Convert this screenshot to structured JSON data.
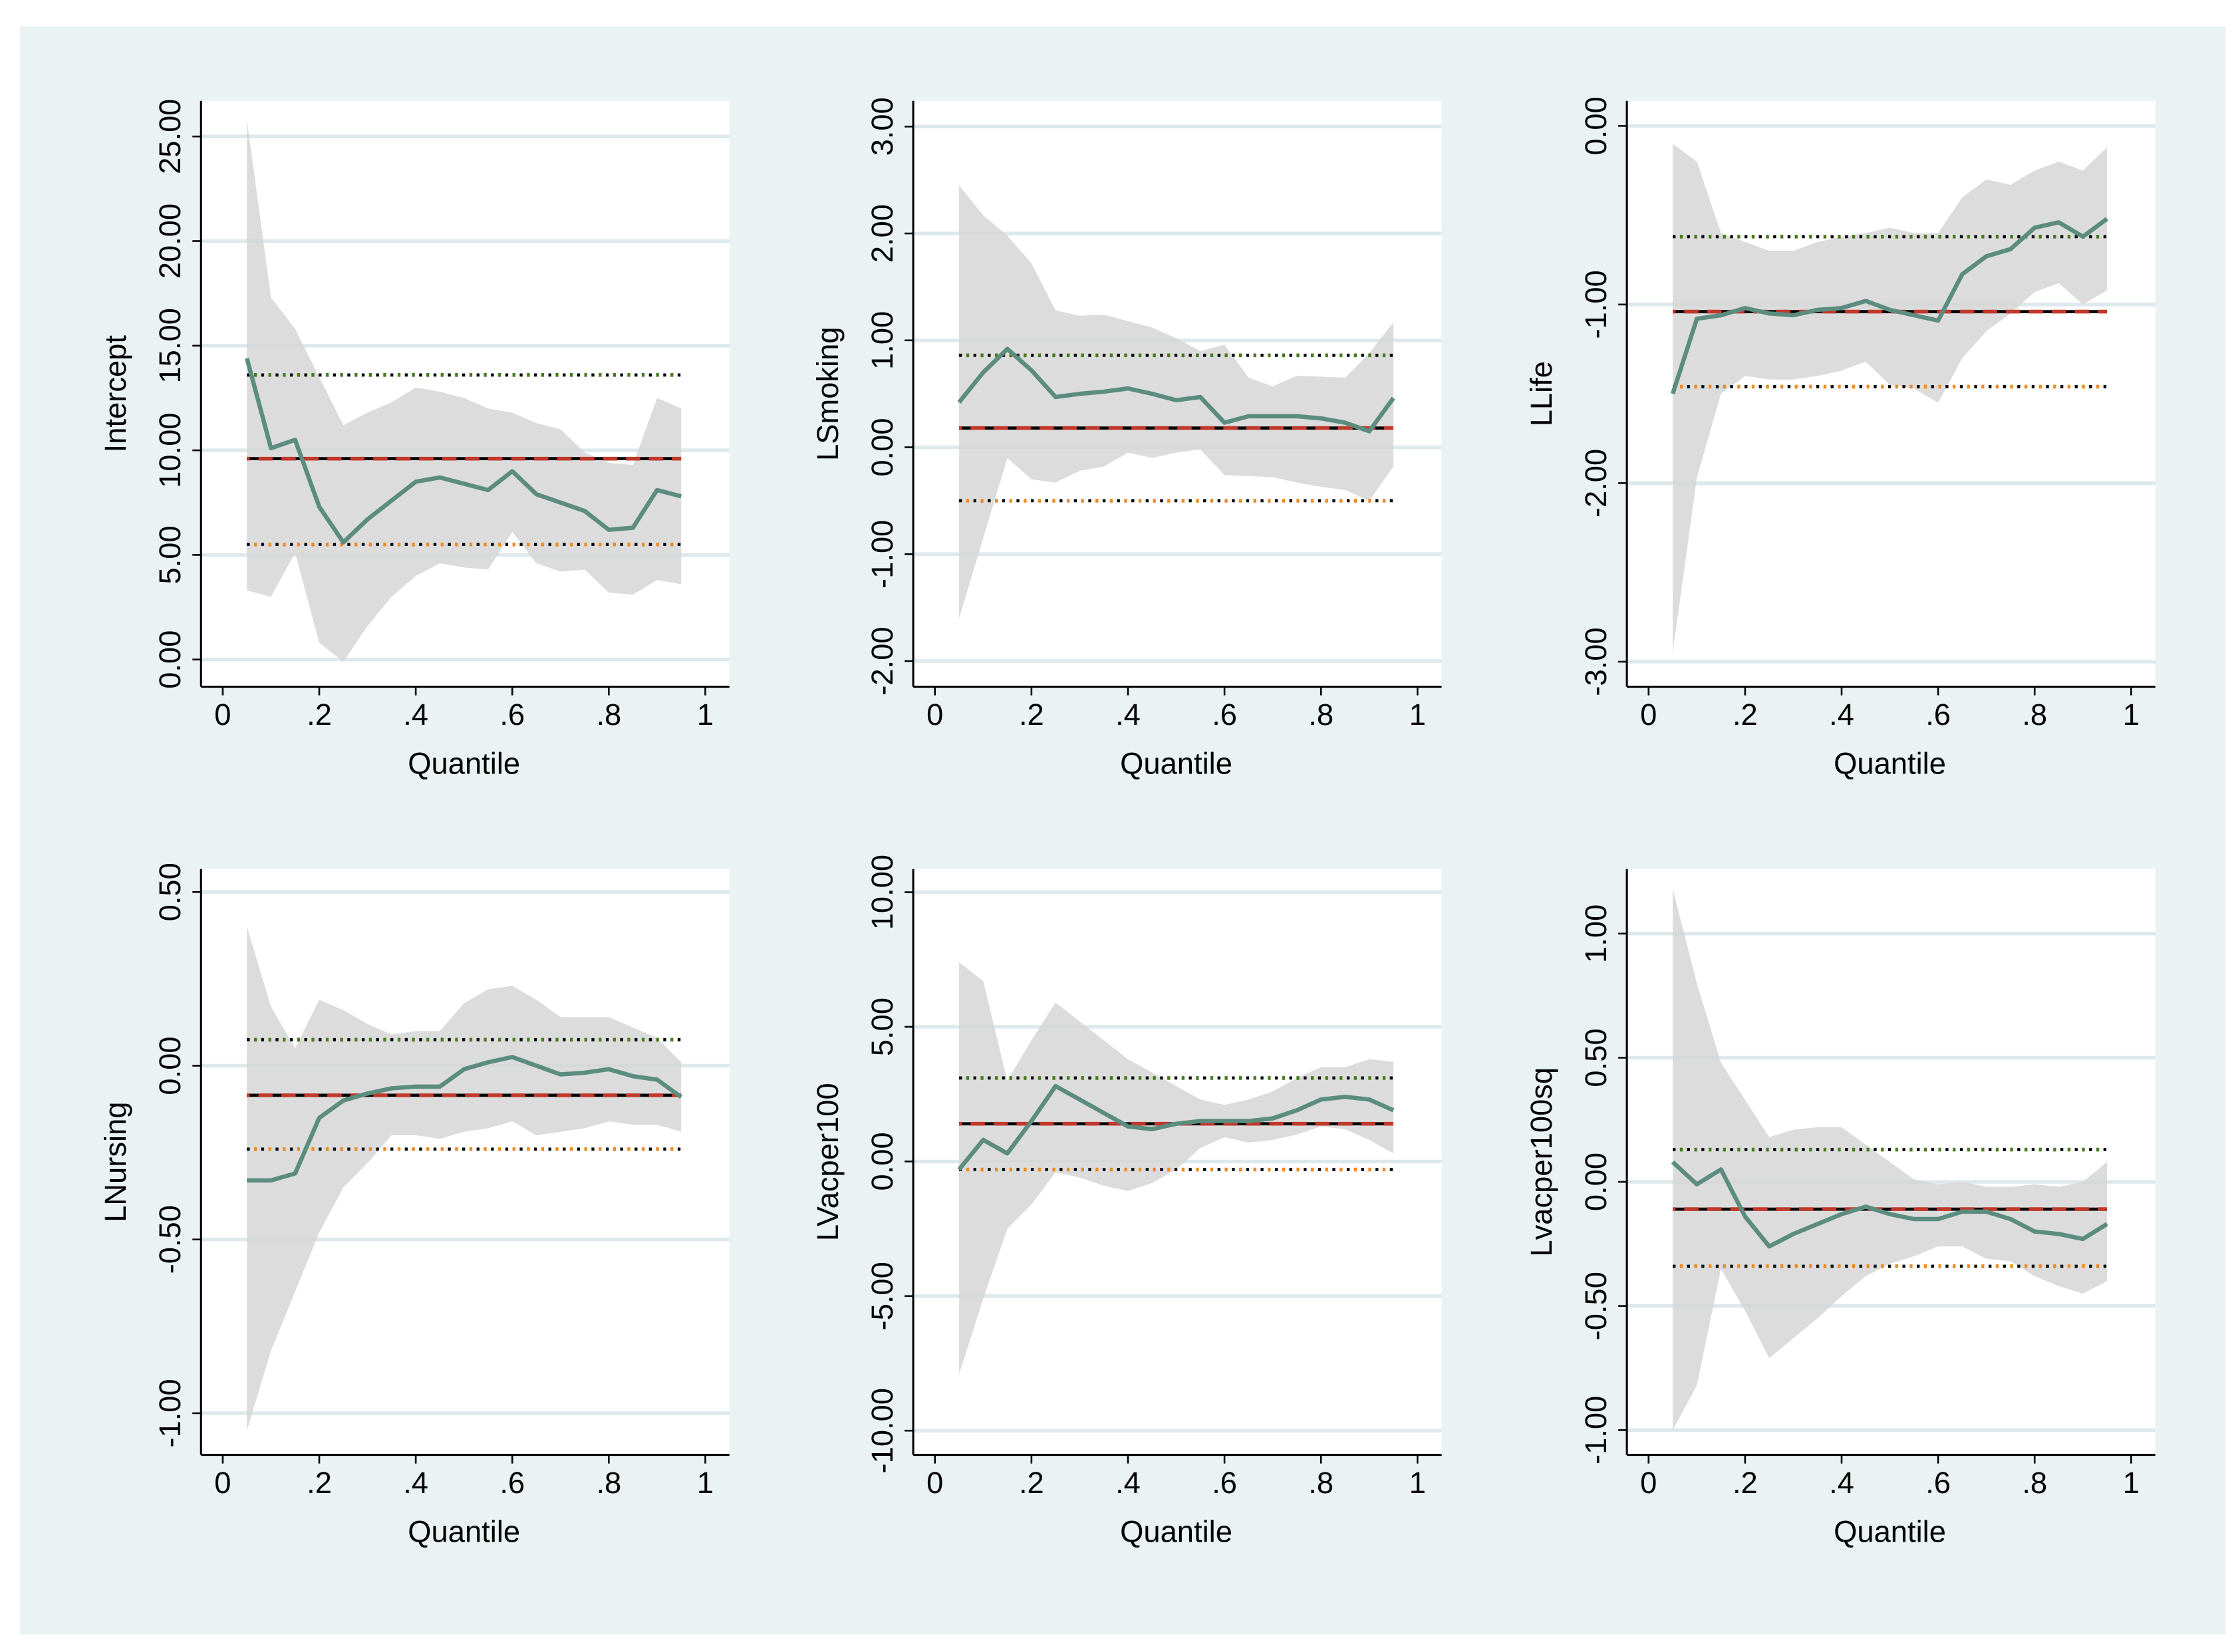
{
  "chart_data": [
    {
      "type": "line",
      "ylabel": "Intercept",
      "xlabel": "Quantile",
      "x": [
        0.05,
        0.1,
        0.15,
        0.2,
        0.25,
        0.3,
        0.35,
        0.4,
        0.45,
        0.5,
        0.55,
        0.6,
        0.65,
        0.7,
        0.75,
        0.8,
        0.85,
        0.9,
        0.95
      ],
      "xlim": [
        -0.045,
        1.05
      ],
      "xticks": [
        0,
        {
          "value": 0.2,
          "label": ".2"
        },
        {
          "value": 0.4,
          "label": ".4"
        },
        {
          "value": 0.6,
          "label": ".6"
        },
        {
          "value": 0.8,
          "label": ".8"
        },
        1
      ],
      "ylim": [
        -1.3,
        26.7
      ],
      "yticks": [
        {
          "value": 0,
          "label": "0.00"
        },
        {
          "value": 5,
          "label": "5.00"
        },
        {
          "value": 10,
          "label": "10.00"
        },
        {
          "value": 15,
          "label": "15.00"
        },
        {
          "value": 20,
          "label": "20.00"
        },
        {
          "value": 25,
          "label": "25.00"
        }
      ],
      "grid": true,
      "band": {
        "color": "#d6d6d6",
        "lower": [
          3.3,
          3.0,
          5.1,
          0.8,
          -0.1,
          1.6,
          3.0,
          4.0,
          4.6,
          4.4,
          4.3,
          6.1,
          4.6,
          4.2,
          4.3,
          3.2,
          3.1,
          3.8,
          3.6
        ],
        "upper": [
          25.8,
          17.3,
          15.8,
          13.5,
          11.2,
          11.8,
          12.3,
          13.0,
          12.8,
          12.5,
          12.0,
          11.8,
          11.3,
          11.0,
          9.9,
          9.4,
          9.3,
          12.5,
          12.0
        ]
      },
      "series": [
        {
          "color": "#5b8c7e",
          "values": [
            14.4,
            10.1,
            10.5,
            7.3,
            5.6,
            6.7,
            7.6,
            8.5,
            8.7,
            8.4,
            8.1,
            9.0,
            7.9,
            7.5,
            7.1,
            6.2,
            6.3,
            8.1,
            7.8
          ]
        }
      ],
      "hlines": [
        {
          "value": 13.6,
          "color": "#4a7a1e",
          "style": "dotted"
        },
        {
          "value": 9.6,
          "color": "#c0392b",
          "style": "dashed"
        },
        {
          "value": 5.5,
          "color": "#f08a1c",
          "style": "dotted"
        }
      ]
    },
    {
      "type": "line",
      "ylabel": "LSmoking",
      "xlabel": "Quantile",
      "x": [
        0.05,
        0.1,
        0.15,
        0.2,
        0.25,
        0.3,
        0.35,
        0.4,
        0.45,
        0.5,
        0.55,
        0.6,
        0.65,
        0.7,
        0.75,
        0.8,
        0.85,
        0.9,
        0.95
      ],
      "xlim": [
        -0.045,
        1.05
      ],
      "xticks": [
        0,
        {
          "value": 0.2,
          "label": ".2"
        },
        {
          "value": 0.4,
          "label": ".4"
        },
        {
          "value": 0.6,
          "label": ".6"
        },
        {
          "value": 0.8,
          "label": ".8"
        },
        1
      ],
      "ylim": [
        -2.24,
        3.24
      ],
      "yticks": [
        {
          "value": -2,
          "label": "-2.00"
        },
        {
          "value": -1,
          "label": "-1.00"
        },
        {
          "value": 0,
          "label": "0.00"
        },
        {
          "value": 1,
          "label": "1.00"
        },
        {
          "value": 2,
          "label": "2.00"
        },
        {
          "value": 3,
          "label": "3.00"
        }
      ],
      "grid": true,
      "band": {
        "color": "#d6d6d6",
        "lower": [
          -1.6,
          -0.85,
          -0.1,
          -0.3,
          -0.33,
          -0.22,
          -0.18,
          -0.05,
          -0.1,
          -0.05,
          -0.02,
          -0.26,
          -0.27,
          -0.28,
          -0.33,
          -0.37,
          -0.4,
          -0.5,
          -0.18
        ],
        "upper": [
          2.45,
          2.17,
          1.98,
          1.72,
          1.28,
          1.23,
          1.24,
          1.18,
          1.12,
          1.02,
          0.9,
          0.96,
          0.65,
          0.57,
          0.67,
          0.66,
          0.65,
          0.88,
          1.17
        ]
      },
      "series": [
        {
          "color": "#5b8c7e",
          "values": [
            0.42,
            0.7,
            0.92,
            0.72,
            0.47,
            0.5,
            0.52,
            0.55,
            0.5,
            0.44,
            0.47,
            0.23,
            0.29,
            0.29,
            0.29,
            0.27,
            0.23,
            0.15,
            0.46
          ]
        }
      ],
      "hlines": [
        {
          "value": 0.86,
          "color": "#4a7a1e",
          "style": "dotted"
        },
        {
          "value": 0.18,
          "color": "#c0392b",
          "style": "dashed"
        },
        {
          "value": -0.5,
          "color": "#f08a1c",
          "style": "dotted"
        }
      ]
    },
    {
      "type": "line",
      "ylabel": "LLife",
      "xlabel": "Quantile",
      "x": [
        0.05,
        0.1,
        0.15,
        0.2,
        0.25,
        0.3,
        0.35,
        0.4,
        0.45,
        0.5,
        0.55,
        0.6,
        0.65,
        0.7,
        0.75,
        0.8,
        0.85,
        0.9,
        0.95
      ],
      "xlim": [
        -0.045,
        1.05
      ],
      "xticks": [
        0,
        {
          "value": 0.2,
          "label": ".2"
        },
        {
          "value": 0.4,
          "label": ".4"
        },
        {
          "value": 0.6,
          "label": ".6"
        },
        {
          "value": 0.8,
          "label": ".8"
        },
        1
      ],
      "ylim": [
        -3.14,
        0.14
      ],
      "yticks": [
        {
          "value": -3,
          "label": "-3.00"
        },
        {
          "value": -2,
          "label": "-2.00"
        },
        {
          "value": -1,
          "label": "-1.00"
        },
        {
          "value": 0,
          "label": "0.00"
        }
      ],
      "grid": true,
      "band": {
        "color": "#d6d6d6",
        "lower": [
          -2.95,
          -1.97,
          -1.5,
          -1.4,
          -1.42,
          -1.42,
          -1.4,
          -1.37,
          -1.32,
          -1.45,
          -1.47,
          -1.55,
          -1.3,
          -1.15,
          -1.05,
          -0.93,
          -0.88,
          -1.0,
          -0.92
        ],
        "upper": [
          -0.1,
          -0.2,
          -0.6,
          -0.65,
          -0.7,
          -0.7,
          -0.65,
          -0.62,
          -0.6,
          -0.57,
          -0.6,
          -0.6,
          -0.4,
          -0.3,
          -0.33,
          -0.25,
          -0.2,
          -0.25,
          -0.12
        ]
      },
      "series": [
        {
          "color": "#5b8c7e",
          "values": [
            -1.5,
            -1.08,
            -1.06,
            -1.02,
            -1.05,
            -1.06,
            -1.03,
            -1.02,
            -0.98,
            -1.03,
            -1.06,
            -1.09,
            -0.83,
            -0.73,
            -0.69,
            -0.57,
            -0.54,
            -0.62,
            -0.52
          ]
        }
      ],
      "hlines": [
        {
          "value": -0.62,
          "color": "#4a7a1e",
          "style": "dotted"
        },
        {
          "value": -1.04,
          "color": "#c0392b",
          "style": "dashed"
        },
        {
          "value": -1.46,
          "color": "#f08a1c",
          "style": "dotted"
        }
      ]
    },
    {
      "type": "line",
      "ylabel": "LNursing",
      "xlabel": "Quantile",
      "x": [
        0.05,
        0.1,
        0.15,
        0.2,
        0.25,
        0.3,
        0.35,
        0.4,
        0.45,
        0.5,
        0.55,
        0.6,
        0.65,
        0.7,
        0.75,
        0.8,
        0.85,
        0.9,
        0.95
      ],
      "xlim": [
        -0.045,
        1.05
      ],
      "xticks": [
        0,
        {
          "value": 0.2,
          "label": ".2"
        },
        {
          "value": 0.4,
          "label": ".4"
        },
        {
          "value": 0.6,
          "label": ".6"
        },
        {
          "value": 0.8,
          "label": ".8"
        },
        1
      ],
      "ylim": [
        -1.12,
        0.566
      ],
      "yticks": [
        {
          "value": -1,
          "label": "-1.00"
        },
        {
          "value": -0.5,
          "label": "-0.50"
        },
        {
          "value": 0,
          "label": "0.00"
        },
        {
          "value": 0.5,
          "label": "0.50"
        }
      ],
      "grid": true,
      "band": {
        "color": "#d6d6d6",
        "lower": [
          -1.05,
          -0.82,
          -0.65,
          -0.48,
          -0.35,
          -0.28,
          -0.2,
          -0.2,
          -0.21,
          -0.19,
          -0.18,
          -0.16,
          -0.2,
          -0.19,
          -0.18,
          -0.16,
          -0.17,
          -0.17,
          -0.19
        ],
        "upper": [
          0.4,
          0.17,
          0.05,
          0.19,
          0.16,
          0.12,
          0.09,
          0.1,
          0.1,
          0.18,
          0.22,
          0.23,
          0.19,
          0.14,
          0.14,
          0.14,
          0.11,
          0.08,
          0.01
        ]
      },
      "series": [
        {
          "color": "#5b8c7e",
          "values": [
            -0.33,
            -0.33,
            -0.31,
            -0.15,
            -0.1,
            -0.08,
            -0.065,
            -0.06,
            -0.06,
            -0.01,
            0.01,
            0.025,
            0.0,
            -0.025,
            -0.02,
            -0.01,
            -0.03,
            -0.04,
            -0.09
          ]
        }
      ],
      "hlines": [
        {
          "value": 0.075,
          "color": "#4a7a1e",
          "style": "dotted"
        },
        {
          "value": -0.085,
          "color": "#c0392b",
          "style": "dashed"
        },
        {
          "value": -0.24,
          "color": "#f08a1c",
          "style": "dotted"
        }
      ]
    },
    {
      "type": "line",
      "ylabel": "LVacper100",
      "xlabel": "Quantile",
      "x": [
        0.05,
        0.1,
        0.15,
        0.2,
        0.25,
        0.3,
        0.35,
        0.4,
        0.45,
        0.5,
        0.55,
        0.6,
        0.65,
        0.7,
        0.75,
        0.8,
        0.85,
        0.9,
        0.95
      ],
      "xlim": [
        -0.045,
        1.05
      ],
      "xticks": [
        0,
        {
          "value": 0.2,
          "label": ".2"
        },
        {
          "value": 0.4,
          "label": ".4"
        },
        {
          "value": 0.6,
          "label": ".6"
        },
        {
          "value": 0.8,
          "label": ".8"
        },
        1
      ],
      "ylim": [
        -10.9,
        10.86
      ],
      "yticks": [
        {
          "value": -10,
          "label": "-10.00"
        },
        {
          "value": -5,
          "label": "-5.00"
        },
        {
          "value": 0,
          "label": "0.00"
        },
        {
          "value": 5,
          "label": "5.00"
        },
        {
          "value": 10,
          "label": "10.00"
        }
      ],
      "grid": true,
      "band": {
        "color": "#d6d6d6",
        "lower": [
          -7.9,
          -5.1,
          -2.5,
          -1.6,
          -0.4,
          -0.6,
          -0.9,
          -1.1,
          -0.8,
          -0.3,
          0.5,
          0.9,
          0.7,
          0.8,
          1.0,
          1.3,
          1.2,
          0.8,
          0.3
        ],
        "upper": [
          7.4,
          6.7,
          3.0,
          4.5,
          5.9,
          5.2,
          4.5,
          3.8,
          3.3,
          2.8,
          2.3,
          2.1,
          2.3,
          2.6,
          3.1,
          3.5,
          3.5,
          3.8,
          3.7
        ]
      },
      "series": [
        {
          "color": "#5b8c7e",
          "values": [
            -0.3,
            0.8,
            0.3,
            1.5,
            2.8,
            2.3,
            1.8,
            1.3,
            1.2,
            1.4,
            1.5,
            1.5,
            1.5,
            1.6,
            1.9,
            2.3,
            2.4,
            2.3,
            1.9
          ]
        }
      ],
      "hlines": [
        {
          "value": 3.1,
          "color": "#4a7a1e",
          "style": "dotted"
        },
        {
          "value": 1.4,
          "color": "#c0392b",
          "style": "dashed"
        },
        {
          "value": -0.3,
          "color": "#f08a1c",
          "style": "dotted"
        }
      ]
    },
    {
      "type": "line",
      "ylabel": "Lvacper100sq",
      "xlabel": "Quantile",
      "x": [
        0.05,
        0.1,
        0.15,
        0.2,
        0.25,
        0.3,
        0.35,
        0.4,
        0.45,
        0.5,
        0.55,
        0.6,
        0.65,
        0.7,
        0.75,
        0.8,
        0.85,
        0.9,
        0.95
      ],
      "xlim": [
        -0.045,
        1.05
      ],
      "xticks": [
        0,
        {
          "value": 0.2,
          "label": ".2"
        },
        {
          "value": 0.4,
          "label": ".4"
        },
        {
          "value": 0.6,
          "label": ".6"
        },
        {
          "value": 0.8,
          "label": ".8"
        },
        1
      ],
      "ylim": [
        -1.1,
        1.26
      ],
      "yticks": [
        {
          "value": -1,
          "label": "-1.00"
        },
        {
          "value": -0.5,
          "label": "-0.50"
        },
        {
          "value": 0,
          "label": "0.00"
        },
        {
          "value": 0.5,
          "label": "0.50"
        },
        {
          "value": 1,
          "label": "1.00"
        }
      ],
      "grid": true,
      "band": {
        "color": "#d6d6d6",
        "lower": [
          -1.0,
          -0.82,
          -0.35,
          -0.52,
          -0.71,
          -0.63,
          -0.55,
          -0.46,
          -0.38,
          -0.33,
          -0.3,
          -0.26,
          -0.26,
          -0.31,
          -0.32,
          -0.38,
          -0.42,
          -0.45,
          -0.4
        ],
        "upper": [
          1.18,
          0.8,
          0.48,
          0.33,
          0.18,
          0.21,
          0.22,
          0.22,
          0.15,
          0.08,
          0.01,
          -0.01,
          0.0,
          -0.02,
          -0.02,
          -0.01,
          -0.02,
          0.0,
          0.08
        ]
      },
      "series": [
        {
          "color": "#5b8c7e",
          "values": [
            0.08,
            -0.01,
            0.05,
            -0.14,
            -0.26,
            -0.21,
            -0.17,
            -0.13,
            -0.1,
            -0.13,
            -0.15,
            -0.15,
            -0.12,
            -0.12,
            -0.15,
            -0.2,
            -0.21,
            -0.23,
            -0.17
          ]
        }
      ],
      "hlines": [
        {
          "value": 0.13,
          "color": "#4a7a1e",
          "style": "dotted"
        },
        {
          "value": -0.11,
          "color": "#c0392b",
          "style": "dashed"
        },
        {
          "value": -0.34,
          "color": "#f08a1c",
          "style": "dotted"
        }
      ]
    }
  ]
}
